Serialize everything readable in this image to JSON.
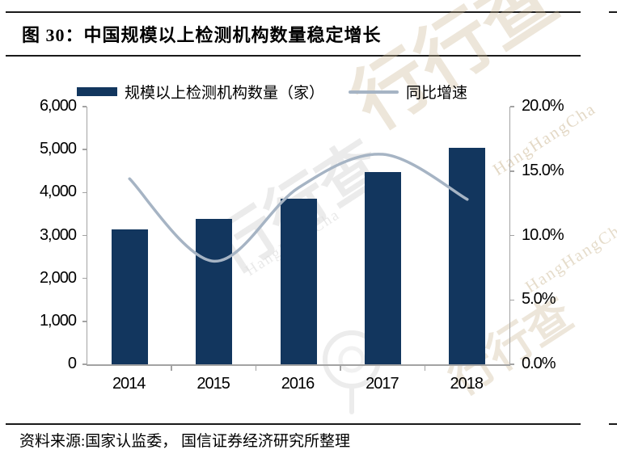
{
  "figure": {
    "title": "图 30：中国规模以上检测机构数量稳定增长",
    "source": "资料来源:国家认监委， 国信证券经济研究所整理"
  },
  "legend": [
    {
      "label": "规模以上检测机构数量（家）",
      "swatch": "bar"
    },
    {
      "label": "同比增速",
      "swatch": "line"
    }
  ],
  "watermark": {
    "brand": "行行查",
    "latin": "HangHangCha"
  },
  "colors": {
    "bar": "#12365E",
    "line": "#A6B4C4",
    "axis": "#A3A3A3",
    "rule": "#1A1A1A",
    "watermark_tan": "#CDBA97",
    "watermark_gray": "#DCDCDC"
  },
  "chart_data": {
    "type": "bar",
    "combo": "bar+line",
    "title": "中国规模以上检测机构数量稳定增长",
    "categories": [
      "2014",
      "2015",
      "2016",
      "2017",
      "2018"
    ],
    "series": [
      {
        "name": "规模以上检测机构数量（家）",
        "type": "bar",
        "axis": "left",
        "values": [
          3140,
          3390,
          3860,
          4480,
          5050
        ]
      },
      {
        "name": "同比增速",
        "type": "line",
        "axis": "right",
        "values": [
          14.4,
          8.0,
          13.7,
          16.3,
          12.8
        ],
        "unit": "%"
      }
    ],
    "left_axis": {
      "min": 0,
      "max": 6000,
      "ticks": [
        "6,000",
        "5,000",
        "4,000",
        "3,000",
        "2,000",
        "1,000",
        "0"
      ]
    },
    "right_axis": {
      "min": 0,
      "max": 20,
      "ticks": [
        "20.0%",
        "15.0%",
        "10.0%",
        "5.0%",
        "0.0%"
      ]
    },
    "grid": false,
    "legend_position": "top",
    "line_smoothing": true
  }
}
